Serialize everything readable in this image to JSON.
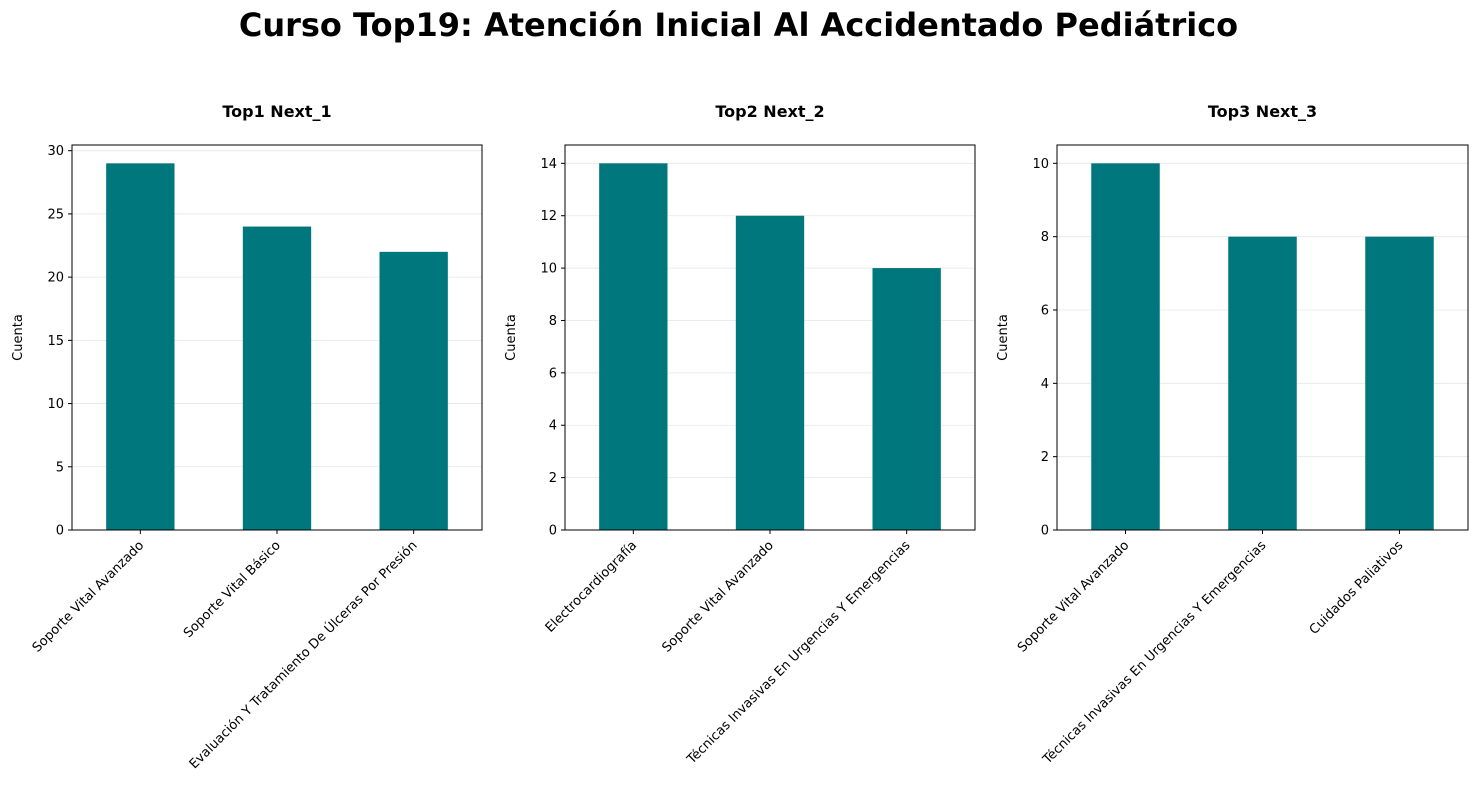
{
  "suptitle": "Curso Top19: Atención Inicial Al Accidentado Pediátrico",
  "bar_color": "#00767d",
  "chart_data": [
    {
      "type": "bar",
      "title": "Top1 Next_1",
      "xlabel": "",
      "ylabel": "Cuenta",
      "categories": [
        "Soporte Vital Avanzado",
        "Soporte Vital Básico",
        "Evaluación Y Tratamiento De Úlceras Por Presión"
      ],
      "values": [
        29,
        24,
        22
      ],
      "ylim": [
        0,
        30.45
      ],
      "yticks": [
        0,
        5,
        10,
        15,
        20,
        25,
        30
      ],
      "grid": "y"
    },
    {
      "type": "bar",
      "title": "Top2 Next_2",
      "xlabel": "",
      "ylabel": "Cuenta",
      "categories": [
        "Electrocardiografía",
        "Soporte Vital Avanzado",
        "Técnicas Invasivas En Urgencias Y Emergencias"
      ],
      "values": [
        14,
        12,
        10
      ],
      "ylim": [
        0,
        14.7
      ],
      "yticks": [
        0,
        2,
        4,
        6,
        8,
        10,
        12,
        14
      ],
      "grid": "y"
    },
    {
      "type": "bar",
      "title": "Top3 Next_3",
      "xlabel": "",
      "ylabel": "Cuenta",
      "categories": [
        "Soporte Vital Avanzado",
        "Técnicas Invasivas En Urgencias Y Emergencias",
        "Cuidados Paliativos"
      ],
      "values": [
        10,
        8,
        8
      ],
      "ylim": [
        0,
        10.5
      ],
      "yticks": [
        0,
        2,
        4,
        6,
        8,
        10
      ],
      "grid": "y"
    }
  ]
}
